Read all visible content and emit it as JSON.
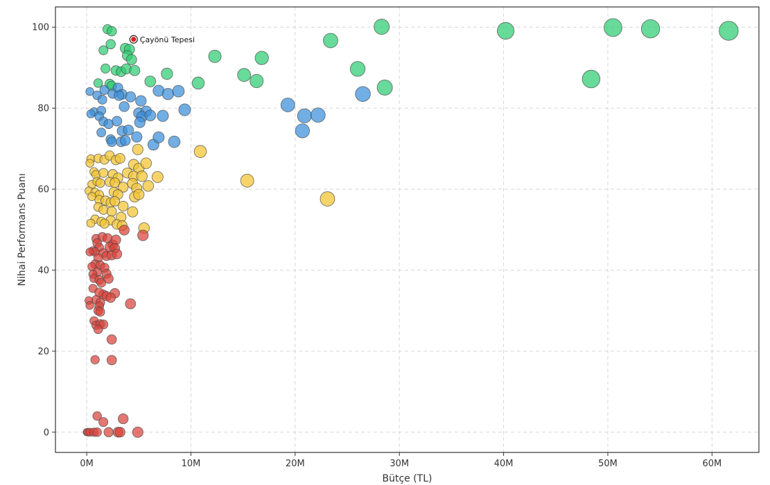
{
  "chart_data": {
    "type": "scatter",
    "title": "",
    "xlabel": "Bütçe (TL)",
    "ylabel": "Nihai Performans Puanı",
    "xlim": [
      -3000000,
      64500000
    ],
    "ylim": [
      -5,
      105
    ],
    "xticks": [
      {
        "value": 0,
        "label": "0M"
      },
      {
        "value": 10000000,
        "label": "10M"
      },
      {
        "value": 20000000,
        "label": "20M"
      },
      {
        "value": 30000000,
        "label": "30M"
      },
      {
        "value": 40000000,
        "label": "40M"
      },
      {
        "value": 50000000,
        "label": "50M"
      },
      {
        "value": 60000000,
        "label": "60M"
      }
    ],
    "yticks": [
      {
        "value": 0,
        "label": "0"
      },
      {
        "value": 20,
        "label": "20"
      },
      {
        "value": 40,
        "label": "40"
      },
      {
        "value": 60,
        "label": "60"
      },
      {
        "value": 80,
        "label": "80"
      },
      {
        "value": 100,
        "label": "100"
      }
    ],
    "grid": true,
    "legend": "none",
    "size_encoding": "budget",
    "series": [
      {
        "color": "#2ecc71",
        "points": [
          [
            2000000,
            99.5
          ],
          [
            2400000,
            99.0
          ],
          [
            2300000,
            95.8
          ],
          [
            1600000,
            94.3
          ],
          [
            3700000,
            94.8
          ],
          [
            4100000,
            94.5
          ],
          [
            3900000,
            93.0
          ],
          [
            4300000,
            92.0
          ],
          [
            1800000,
            89.8
          ],
          [
            2800000,
            89.3
          ],
          [
            3300000,
            89.0
          ],
          [
            3800000,
            89.7
          ],
          [
            4600000,
            89.3
          ],
          [
            1100000,
            86.2
          ],
          [
            2200000,
            86.0
          ],
          [
            2400000,
            85.5
          ],
          [
            6100000,
            86.6
          ],
          [
            7700000,
            88.5
          ],
          [
            10700000,
            86.2
          ],
          [
            12300000,
            92.8
          ],
          [
            15100000,
            88.2
          ],
          [
            16300000,
            86.7
          ],
          [
            16800000,
            92.4
          ],
          [
            23400000,
            96.7
          ],
          [
            26000000,
            89.7
          ],
          [
            28300000,
            100.1
          ],
          [
            28600000,
            85.1
          ],
          [
            40200000,
            99.1
          ],
          [
            48400000,
            87.2
          ],
          [
            50500000,
            99.9
          ],
          [
            54100000,
            99.6
          ],
          [
            61600000,
            99.1
          ]
        ]
      },
      {
        "color": "#3a8fd9",
        "points": [
          [
            300000,
            84.1
          ],
          [
            1000000,
            83.2
          ],
          [
            1700000,
            84.5
          ],
          [
            2500000,
            83.6
          ],
          [
            3000000,
            85.0
          ],
          [
            3400000,
            83.4
          ],
          [
            3100000,
            83.1
          ],
          [
            1500000,
            82.1
          ],
          [
            4200000,
            82.8
          ],
          [
            5200000,
            81.8
          ],
          [
            700000,
            79.1
          ],
          [
            400000,
            78.6
          ],
          [
            1400000,
            79.4
          ],
          [
            1200000,
            78.0
          ],
          [
            3600000,
            80.4
          ],
          [
            5000000,
            78.8
          ],
          [
            5700000,
            79.2
          ],
          [
            5300000,
            77.9
          ],
          [
            5100000,
            76.5
          ],
          [
            6100000,
            78.2
          ],
          [
            6900000,
            84.3
          ],
          [
            7800000,
            83.5
          ],
          [
            8800000,
            84.2
          ],
          [
            9400000,
            79.6
          ],
          [
            7300000,
            78.1
          ],
          [
            1600000,
            76.7
          ],
          [
            2100000,
            76.1
          ],
          [
            2900000,
            76.8
          ],
          [
            3400000,
            74.4
          ],
          [
            4000000,
            74.6
          ],
          [
            1400000,
            74.0
          ],
          [
            2300000,
            72.3
          ],
          [
            3300000,
            71.7
          ],
          [
            3700000,
            72.0
          ],
          [
            4800000,
            72.9
          ],
          [
            2400000,
            71.7
          ],
          [
            6400000,
            71.0
          ],
          [
            6900000,
            72.8
          ],
          [
            8400000,
            71.7
          ],
          [
            19300000,
            80.8
          ],
          [
            20900000,
            78.1
          ],
          [
            22200000,
            78.3
          ],
          [
            20700000,
            74.4
          ],
          [
            26500000,
            83.5
          ]
        ]
      },
      {
        "color": "#f2c431",
        "points": [
          [
            400000,
            67.5
          ],
          [
            300000,
            66.4
          ],
          [
            1100000,
            67.6
          ],
          [
            1700000,
            67.3
          ],
          [
            2200000,
            68.3
          ],
          [
            2800000,
            67.2
          ],
          [
            3200000,
            67.6
          ],
          [
            4900000,
            69.8
          ],
          [
            700000,
            64.3
          ],
          [
            900000,
            63.6
          ],
          [
            1600000,
            64.0
          ],
          [
            2500000,
            63.7
          ],
          [
            3000000,
            62.8
          ],
          [
            3900000,
            64.0
          ],
          [
            4500000,
            66.1
          ],
          [
            5000000,
            65.1
          ],
          [
            5700000,
            66.4
          ],
          [
            4500000,
            63.2
          ],
          [
            5300000,
            63.2
          ],
          [
            6800000,
            63.0
          ],
          [
            500000,
            61.2
          ],
          [
            1000000,
            61.9
          ],
          [
            1300000,
            61.5
          ],
          [
            2200000,
            61.8
          ],
          [
            2700000,
            61.6
          ],
          [
            3500000,
            60.5
          ],
          [
            4400000,
            61.4
          ],
          [
            4800000,
            60.2
          ],
          [
            5900000,
            60.8
          ],
          [
            200000,
            59.6
          ],
          [
            800000,
            59.2
          ],
          [
            1200000,
            58.6
          ],
          [
            2600000,
            59.3
          ],
          [
            3000000,
            58.7
          ],
          [
            4600000,
            58.1
          ],
          [
            5000000,
            58.7
          ],
          [
            500000,
            58.2
          ],
          [
            1200000,
            57.4
          ],
          [
            1800000,
            57.2
          ],
          [
            2300000,
            56.7
          ],
          [
            2700000,
            57.0
          ],
          [
            1100000,
            55.6
          ],
          [
            1600000,
            54.9
          ],
          [
            2400000,
            54.5
          ],
          [
            3500000,
            55.8
          ],
          [
            4400000,
            54.4
          ],
          [
            3300000,
            53.1
          ],
          [
            800000,
            52.6
          ],
          [
            1400000,
            52.0
          ],
          [
            2300000,
            52.3
          ],
          [
            400000,
            51.6
          ],
          [
            1700000,
            51.5
          ],
          [
            2900000,
            51.3
          ],
          [
            3400000,
            51.0
          ],
          [
            5500000,
            50.4
          ],
          [
            10900000,
            69.3
          ],
          [
            15400000,
            62.1
          ],
          [
            23100000,
            57.6
          ]
        ]
      },
      {
        "color": "#d9433a",
        "points": [
          [
            900000,
            47.8
          ],
          [
            1500000,
            48.2
          ],
          [
            2000000,
            47.9
          ],
          [
            1000000,
            46.7
          ],
          [
            2500000,
            46.3
          ],
          [
            2800000,
            47.5
          ],
          [
            1200000,
            45.6
          ],
          [
            600000,
            44.8
          ],
          [
            800000,
            44.5
          ],
          [
            300000,
            44.5
          ],
          [
            1600000,
            44.2
          ],
          [
            2200000,
            45.7
          ],
          [
            2700000,
            45.4
          ],
          [
            1900000,
            43.5
          ],
          [
            2400000,
            43.7
          ],
          [
            1100000,
            43.0
          ],
          [
            2900000,
            44.0
          ],
          [
            3600000,
            49.9
          ],
          [
            5400000,
            48.6
          ],
          [
            800000,
            41.5
          ],
          [
            1300000,
            41.2
          ],
          [
            500000,
            40.9
          ],
          [
            1700000,
            40.6
          ],
          [
            1000000,
            39.5
          ],
          [
            600000,
            39.0
          ],
          [
            1900000,
            39.1
          ],
          [
            700000,
            38.0
          ],
          [
            1200000,
            37.6
          ],
          [
            1400000,
            36.9
          ],
          [
            2100000,
            37.9
          ],
          [
            600000,
            35.5
          ],
          [
            1600000,
            34.0
          ],
          [
            2700000,
            34.3
          ],
          [
            1200000,
            34.5
          ],
          [
            1900000,
            33.6
          ],
          [
            2300000,
            33.2
          ],
          [
            900000,
            32.7
          ],
          [
            1300000,
            32.0
          ],
          [
            200000,
            32.5
          ],
          [
            300000,
            31.3
          ],
          [
            4200000,
            31.7
          ],
          [
            1200000,
            31.1
          ],
          [
            1100000,
            30.0
          ],
          [
            1300000,
            29.7
          ],
          [
            700000,
            27.5
          ],
          [
            900000,
            26.4
          ],
          [
            1300000,
            26.7
          ],
          [
            1600000,
            26.6
          ],
          [
            1100000,
            25.4
          ],
          [
            2400000,
            22.9
          ],
          [
            800000,
            17.9
          ],
          [
            2400000,
            17.8
          ],
          [
            1000000,
            4.0
          ],
          [
            1600000,
            2.5
          ],
          [
            3500000,
            3.3
          ],
          [
            0,
            0
          ],
          [
            100000,
            0
          ],
          [
            300000,
            0
          ],
          [
            700000,
            0
          ],
          [
            1000000,
            0
          ],
          [
            2100000,
            0
          ],
          [
            3000000,
            0
          ],
          [
            3200000,
            0
          ],
          [
            4900000,
            0
          ]
        ]
      }
    ],
    "annotations": [
      {
        "label": "Çayönü Tepesi",
        "x": 4500000,
        "y": 97,
        "highlight_color": "#e02020"
      }
    ]
  }
}
